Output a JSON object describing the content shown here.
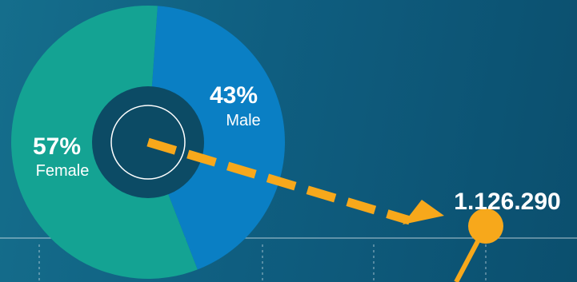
{
  "colors": {
    "background": "#0f5e80",
    "female": "#14a393",
    "male": "#0a7fc4",
    "center_disc": "#0c4b65",
    "arrow": "#f7a81b",
    "text": "#ffffff"
  },
  "chart_data": {
    "type": "pie",
    "style": "donut",
    "slices": [
      {
        "label": "Female",
        "value": 57,
        "display": "57%"
      },
      {
        "label": "Male",
        "value": 43,
        "display": "43%"
      }
    ],
    "callout": {
      "value": "1.126.290",
      "number": 1126290,
      "marker": "dot"
    },
    "axis": {
      "baseline": true,
      "tick_style": "dashed",
      "tick_count": 4
    }
  }
}
